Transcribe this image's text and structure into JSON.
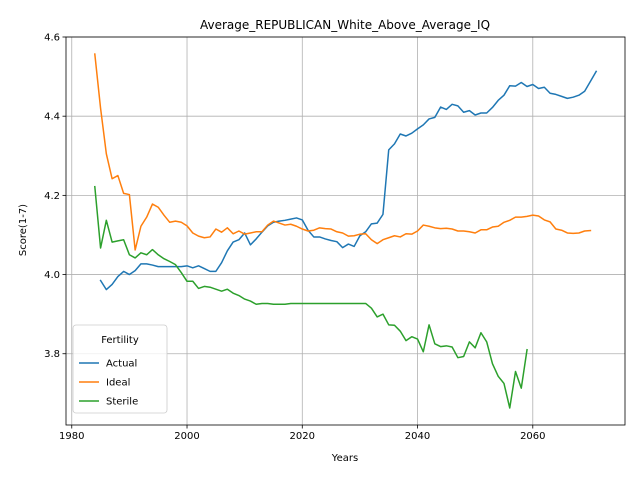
{
  "chart_data": {
    "type": "line",
    "title": "Average_REPUBLICAN_White_Above_Average_IQ",
    "xlabel": "Years",
    "ylabel": "Score(1-7)",
    "xlim": [
      1979,
      2076
    ],
    "ylim": [
      3.62,
      4.6
    ],
    "xticks": [
      1980,
      2000,
      2020,
      2040,
      2060
    ],
    "yticks": [
      3.8,
      4.0,
      4.2,
      4.4,
      4.6
    ],
    "xtick_labels": [
      "1980",
      "2000",
      "2020",
      "2040",
      "2060"
    ],
    "ytick_labels": [
      "3.8",
      "4.0",
      "4.2",
      "4.4",
      "4.6"
    ],
    "grid": true,
    "legend": {
      "title": "Fertility",
      "placement": "lower-left"
    },
    "series": [
      {
        "name": "Actual",
        "color": "#1f77b4",
        "points": [
          [
            1985,
            3.985
          ],
          [
            1986,
            3.962
          ],
          [
            1987,
            3.975
          ],
          [
            1988,
            3.995
          ],
          [
            1989,
            4.008
          ],
          [
            1990,
            4.0
          ],
          [
            1991,
            4.01
          ],
          [
            1992,
            4.027
          ],
          [
            1993,
            4.027
          ],
          [
            1994,
            4.024
          ],
          [
            1995,
            4.02
          ],
          [
            1996,
            4.02
          ],
          [
            1997,
            4.02
          ],
          [
            1998,
            4.02
          ],
          [
            1999,
            4.02
          ],
          [
            2000,
            4.022
          ],
          [
            2001,
            4.017
          ],
          [
            2002,
            4.022
          ],
          [
            2003,
            4.015
          ],
          [
            2004,
            4.008
          ],
          [
            2005,
            4.008
          ],
          [
            2006,
            4.03
          ],
          [
            2007,
            4.06
          ],
          [
            2008,
            4.082
          ],
          [
            2009,
            4.088
          ],
          [
            2010,
            4.105
          ],
          [
            2011,
            4.075
          ],
          [
            2012,
            4.09
          ],
          [
            2013,
            4.107
          ],
          [
            2014,
            4.123
          ],
          [
            2015,
            4.132
          ],
          [
            2016,
            4.135
          ],
          [
            2017,
            4.137
          ],
          [
            2018,
            4.14
          ],
          [
            2019,
            4.143
          ],
          [
            2020,
            4.138
          ],
          [
            2021,
            4.112
          ],
          [
            2022,
            4.095
          ],
          [
            2023,
            4.095
          ],
          [
            2024,
            4.09
          ],
          [
            2025,
            4.086
          ],
          [
            2026,
            4.083
          ],
          [
            2027,
            4.068
          ],
          [
            2028,
            4.077
          ],
          [
            2029,
            4.071
          ],
          [
            2030,
            4.098
          ],
          [
            2031,
            4.108
          ],
          [
            2032,
            4.128
          ],
          [
            2033,
            4.13
          ],
          [
            2034,
            4.152
          ],
          [
            2035,
            4.315
          ],
          [
            2036,
            4.33
          ],
          [
            2037,
            4.355
          ],
          [
            2038,
            4.35
          ],
          [
            2039,
            4.357
          ],
          [
            2040,
            4.368
          ],
          [
            2041,
            4.378
          ],
          [
            2042,
            4.393
          ],
          [
            2043,
            4.397
          ],
          [
            2044,
            4.423
          ],
          [
            2045,
            4.417
          ],
          [
            2046,
            4.43
          ],
          [
            2047,
            4.426
          ],
          [
            2048,
            4.41
          ],
          [
            2049,
            4.414
          ],
          [
            2050,
            4.403
          ],
          [
            2051,
            4.408
          ],
          [
            2052,
            4.408
          ],
          [
            2053,
            4.422
          ],
          [
            2054,
            4.44
          ],
          [
            2055,
            4.453
          ],
          [
            2056,
            4.477
          ],
          [
            2057,
            4.476
          ],
          [
            2058,
            4.485
          ],
          [
            2059,
            4.475
          ],
          [
            2060,
            4.48
          ],
          [
            2061,
            4.47
          ],
          [
            2062,
            4.473
          ],
          [
            2063,
            4.458
          ],
          [
            2064,
            4.455
          ],
          [
            2065,
            4.45
          ],
          [
            2066,
            4.445
          ],
          [
            2067,
            4.448
          ],
          [
            2068,
            4.453
          ],
          [
            2069,
            4.463
          ],
          [
            2070,
            4.488
          ],
          [
            2071,
            4.513
          ]
        ]
      },
      {
        "name": "Ideal",
        "color": "#ff7f0e",
        "points": [
          [
            1984,
            4.557
          ],
          [
            1985,
            4.42
          ],
          [
            1986,
            4.305
          ],
          [
            1987,
            4.242
          ],
          [
            1988,
            4.25
          ],
          [
            1989,
            4.205
          ],
          [
            1990,
            4.202
          ],
          [
            1991,
            4.062
          ],
          [
            1992,
            4.122
          ],
          [
            1993,
            4.145
          ],
          [
            1994,
            4.178
          ],
          [
            1995,
            4.17
          ],
          [
            1996,
            4.15
          ],
          [
            1997,
            4.132
          ],
          [
            1998,
            4.135
          ],
          [
            1999,
            4.132
          ],
          [
            2000,
            4.123
          ],
          [
            2001,
            4.105
          ],
          [
            2002,
            4.097
          ],
          [
            2003,
            4.093
          ],
          [
            2004,
            4.095
          ],
          [
            2005,
            4.115
          ],
          [
            2006,
            4.107
          ],
          [
            2007,
            4.118
          ],
          [
            2008,
            4.103
          ],
          [
            2009,
            4.11
          ],
          [
            2010,
            4.102
          ],
          [
            2011,
            4.105
          ],
          [
            2012,
            4.108
          ],
          [
            2013,
            4.108
          ],
          [
            2014,
            4.125
          ],
          [
            2015,
            4.135
          ],
          [
            2016,
            4.13
          ],
          [
            2017,
            4.125
          ],
          [
            2018,
            4.127
          ],
          [
            2019,
            4.122
          ],
          [
            2020,
            4.115
          ],
          [
            2021,
            4.11
          ],
          [
            2022,
            4.112
          ],
          [
            2023,
            4.118
          ],
          [
            2024,
            4.116
          ],
          [
            2025,
            4.115
          ],
          [
            2026,
            4.108
          ],
          [
            2027,
            4.105
          ],
          [
            2028,
            4.097
          ],
          [
            2029,
            4.098
          ],
          [
            2030,
            4.102
          ],
          [
            2031,
            4.103
          ],
          [
            2032,
            4.088
          ],
          [
            2033,
            4.078
          ],
          [
            2034,
            4.088
          ],
          [
            2035,
            4.093
          ],
          [
            2036,
            4.098
          ],
          [
            2037,
            4.095
          ],
          [
            2038,
            4.103
          ],
          [
            2039,
            4.102
          ],
          [
            2040,
            4.11
          ],
          [
            2041,
            4.125
          ],
          [
            2042,
            4.122
          ],
          [
            2043,
            4.118
          ],
          [
            2044,
            4.116
          ],
          [
            2045,
            4.117
          ],
          [
            2046,
            4.115
          ],
          [
            2047,
            4.11
          ],
          [
            2048,
            4.11
          ],
          [
            2049,
            4.108
          ],
          [
            2050,
            4.105
          ],
          [
            2051,
            4.113
          ],
          [
            2052,
            4.113
          ],
          [
            2053,
            4.12
          ],
          [
            2054,
            4.122
          ],
          [
            2055,
            4.132
          ],
          [
            2056,
            4.137
          ],
          [
            2057,
            4.145
          ],
          [
            2058,
            4.145
          ],
          [
            2059,
            4.147
          ],
          [
            2060,
            4.15
          ],
          [
            2061,
            4.148
          ],
          [
            2062,
            4.138
          ],
          [
            2063,
            4.133
          ],
          [
            2064,
            4.115
          ],
          [
            2065,
            4.112
          ],
          [
            2066,
            4.105
          ],
          [
            2067,
            4.104
          ],
          [
            2068,
            4.105
          ],
          [
            2069,
            4.11
          ],
          [
            2070,
            4.111
          ]
        ]
      },
      {
        "name": "Sterile",
        "color": "#2ca02c",
        "points": [
          [
            1984,
            4.222
          ],
          [
            1985,
            4.067
          ],
          [
            1986,
            4.137
          ],
          [
            1987,
            4.082
          ],
          [
            1988,
            4.085
          ],
          [
            1989,
            4.088
          ],
          [
            1990,
            4.05
          ],
          [
            1991,
            4.042
          ],
          [
            1992,
            4.055
          ],
          [
            1993,
            4.05
          ],
          [
            1994,
            4.063
          ],
          [
            1995,
            4.05
          ],
          [
            1996,
            4.04
          ],
          [
            1997,
            4.033
          ],
          [
            1998,
            4.025
          ],
          [
            1999,
            4.005
          ],
          [
            2000,
            3.983
          ],
          [
            2001,
            3.983
          ],
          [
            2002,
            3.965
          ],
          [
            2003,
            3.97
          ],
          [
            2004,
            3.968
          ],
          [
            2005,
            3.963
          ],
          [
            2006,
            3.958
          ],
          [
            2007,
            3.963
          ],
          [
            2008,
            3.953
          ],
          [
            2009,
            3.947
          ],
          [
            2010,
            3.938
          ],
          [
            2011,
            3.933
          ],
          [
            2012,
            3.925
          ],
          [
            2013,
            3.927
          ],
          [
            2014,
            3.927
          ],
          [
            2015,
            3.925
          ],
          [
            2016,
            3.925
          ],
          [
            2017,
            3.925
          ],
          [
            2018,
            3.927
          ],
          [
            2019,
            3.927
          ],
          [
            2020,
            3.927
          ],
          [
            2021,
            3.927
          ],
          [
            2022,
            3.927
          ],
          [
            2023,
            3.927
          ],
          [
            2024,
            3.927
          ],
          [
            2025,
            3.927
          ],
          [
            2026,
            3.927
          ],
          [
            2027,
            3.927
          ],
          [
            2028,
            3.927
          ],
          [
            2029,
            3.927
          ],
          [
            2030,
            3.927
          ],
          [
            2031,
            3.927
          ],
          [
            2032,
            3.915
          ],
          [
            2033,
            3.893
          ],
          [
            2034,
            3.9
          ],
          [
            2035,
            3.873
          ],
          [
            2036,
            3.872
          ],
          [
            2037,
            3.857
          ],
          [
            2038,
            3.833
          ],
          [
            2039,
            3.843
          ],
          [
            2040,
            3.837
          ],
          [
            2041,
            3.805
          ],
          [
            2042,
            3.873
          ],
          [
            2043,
            3.825
          ],
          [
            2044,
            3.818
          ],
          [
            2045,
            3.82
          ],
          [
            2046,
            3.817
          ],
          [
            2047,
            3.79
          ],
          [
            2048,
            3.793
          ],
          [
            2049,
            3.83
          ],
          [
            2050,
            3.815
          ],
          [
            2051,
            3.853
          ],
          [
            2052,
            3.83
          ],
          [
            2053,
            3.775
          ],
          [
            2054,
            3.743
          ],
          [
            2055,
            3.725
          ],
          [
            2056,
            3.663
          ],
          [
            2057,
            3.755
          ],
          [
            2058,
            3.713
          ],
          [
            2059,
            3.81
          ]
        ]
      }
    ]
  }
}
